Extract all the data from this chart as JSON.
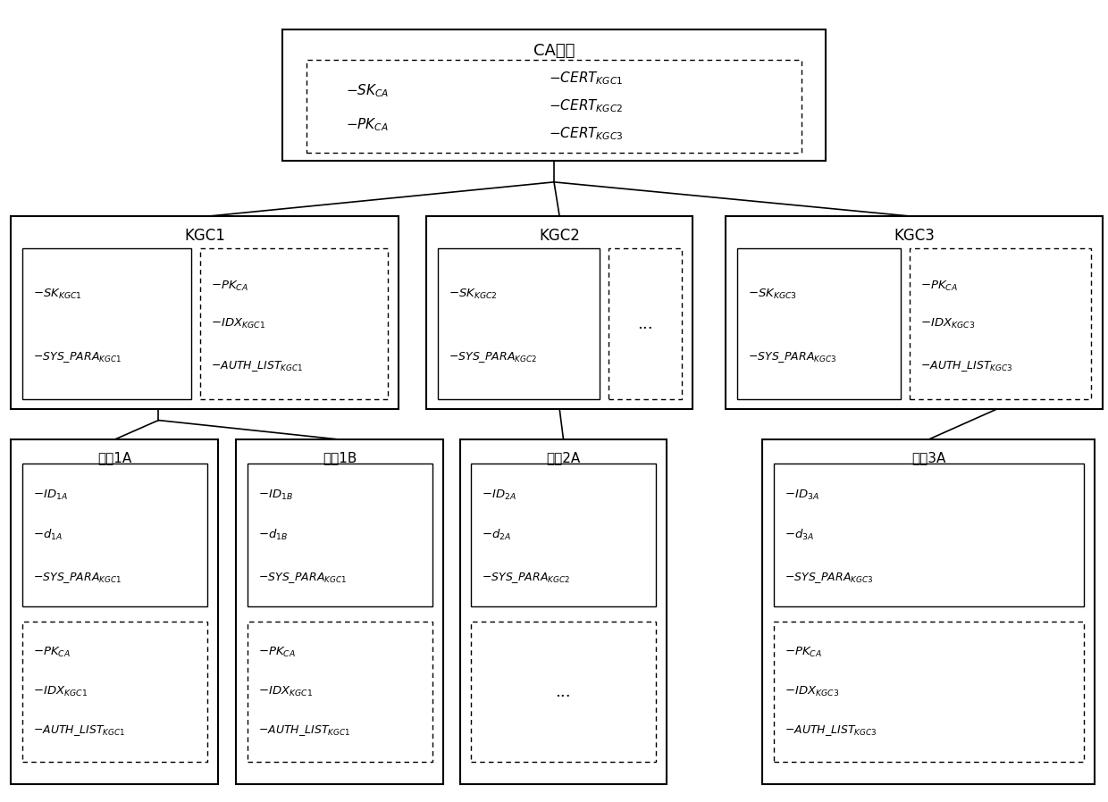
{
  "bg_color": "#ffffff",
  "line_color": "#000000",
  "ca_title": "CA系统",
  "kgc1_title": "KGC1",
  "kgc2_title": "KGC2",
  "kgc3_title": "KGC3",
  "user1a_title": "用户1A",
  "user1b_title": "用户1B",
  "user2a_title": "用户2A",
  "user3a_title": "用户3A"
}
